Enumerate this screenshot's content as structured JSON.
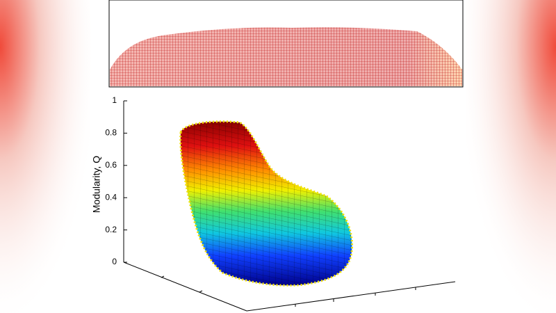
{
  "chart_data": {
    "type": "surface",
    "zlabel": "Modularity, Q",
    "zlim": [
      0,
      1
    ],
    "zticks": [
      0,
      0.2,
      0.4,
      0.6,
      0.8,
      1
    ]
  }
}
